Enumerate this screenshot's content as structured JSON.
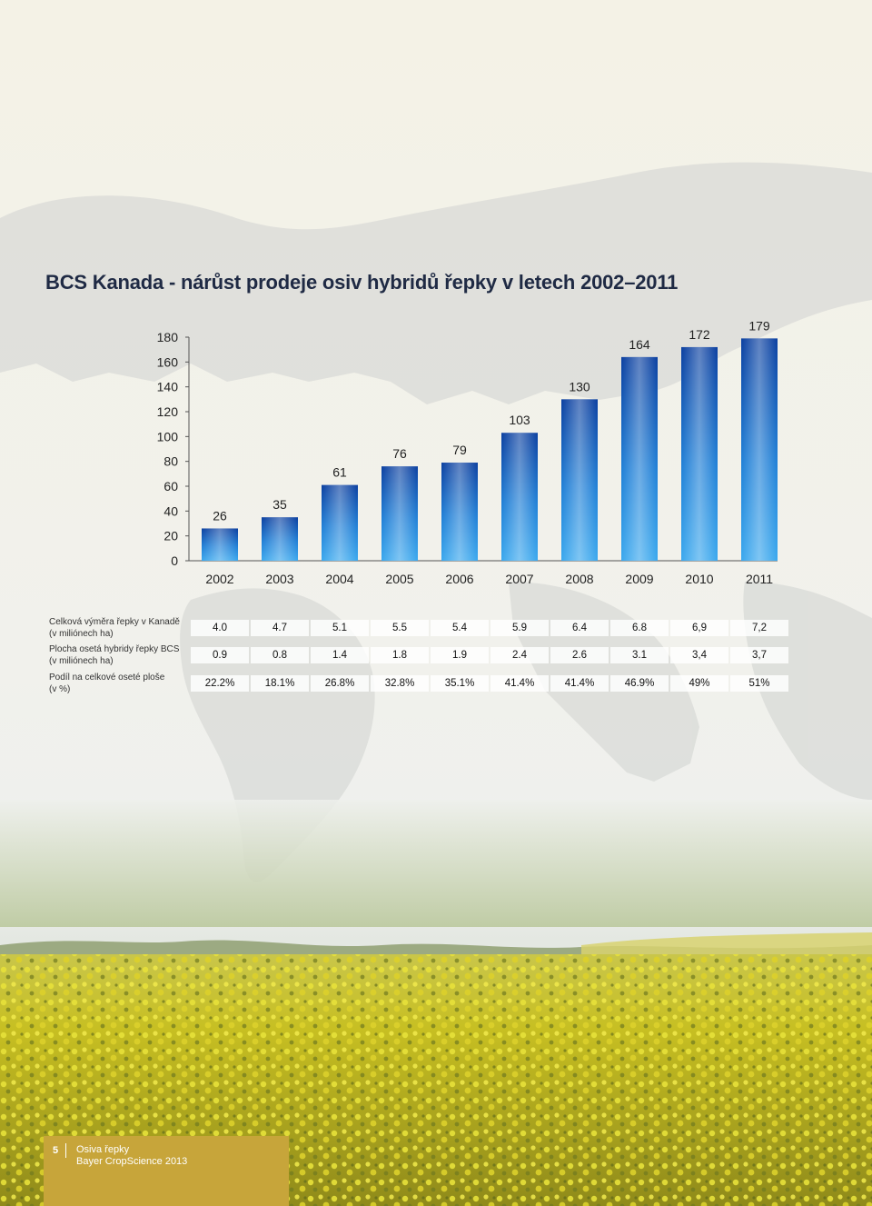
{
  "page": {
    "title": "BCS Kanada - nárůst prodeje osiv hybridů řepky v letech 2002–2011"
  },
  "chart_data": {
    "type": "bar",
    "title": "BCS Kanada - nárůst prodeje osiv hybridů řepky v letech 2002–2011",
    "categories": [
      "2002",
      "2003",
      "2004",
      "2005",
      "2006",
      "2007",
      "2008",
      "2009",
      "2010",
      "2011"
    ],
    "values": [
      26,
      35,
      61,
      76,
      79,
      103,
      130,
      164,
      172,
      179
    ],
    "value_labels": [
      "26",
      "35",
      "61",
      "76",
      "79",
      "103",
      "130",
      "164",
      "172",
      "179"
    ],
    "ylim": [
      0,
      180
    ],
    "yticks": [
      "0",
      "20",
      "40",
      "60",
      "80",
      "100",
      "120",
      "140",
      "160",
      "180"
    ],
    "xlabel": "",
    "ylabel": "",
    "grid": false,
    "bar_color_top": "#0a3fa0",
    "bar_color_bottom": "#3aa8ee"
  },
  "table": {
    "rows": [
      {
        "label_lines": [
          "Celková výměra řepky v Kanadě",
          "(v miliónech ha)"
        ],
        "values": [
          "4.0",
          "4.7",
          "5.1",
          "5.5",
          "5.4",
          "5.9",
          "6.4",
          "6.8",
          "6,9",
          "7,2"
        ]
      },
      {
        "label_lines": [
          "Plocha osetá hybridy řepky BCS",
          "(v miliónech ha)"
        ],
        "values": [
          "0.9",
          "0.8",
          "1.4",
          "1.8",
          "1.9",
          "2.4",
          "2.6",
          "3.1",
          "3,4",
          "3,7"
        ]
      },
      {
        "label_lines": [
          "Podíl na celkové oseté ploše",
          "(v %)"
        ],
        "values": [
          "22.2%",
          "18.1%",
          "26.8%",
          "32.8%",
          "35.1%",
          "41.4%",
          "41.4%",
          "46.9%",
          "49%",
          "51%"
        ]
      }
    ]
  },
  "footer": {
    "page_number": "5",
    "line1": "Osiva řepky",
    "line2": "Bayer CropScience 2013",
    "color": "#c7a53a"
  }
}
